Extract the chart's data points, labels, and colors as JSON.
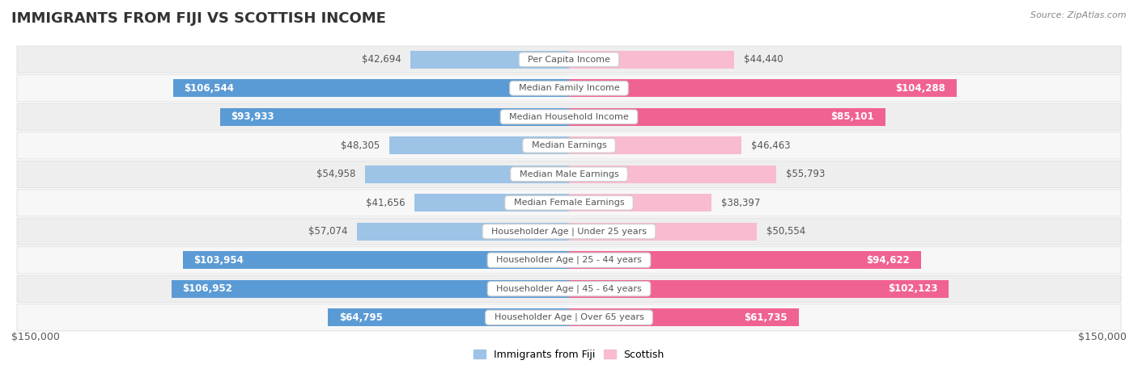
{
  "title": "IMMIGRANTS FROM FIJI VS SCOTTISH INCOME",
  "source": "Source: ZipAtlas.com",
  "categories": [
    "Per Capita Income",
    "Median Family Income",
    "Median Household Income",
    "Median Earnings",
    "Median Male Earnings",
    "Median Female Earnings",
    "Householder Age | Under 25 years",
    "Householder Age | 25 - 44 years",
    "Householder Age | 45 - 64 years",
    "Householder Age | Over 65 years"
  ],
  "fiji_values": [
    42694,
    106544,
    93933,
    48305,
    54958,
    41656,
    57074,
    103954,
    106952,
    64795
  ],
  "scottish_values": [
    44440,
    104288,
    85101,
    46463,
    55793,
    38397,
    50554,
    94622,
    102123,
    61735
  ],
  "fiji_labels": [
    "$42,694",
    "$106,544",
    "$93,933",
    "$48,305",
    "$54,958",
    "$41,656",
    "$57,074",
    "$103,954",
    "$106,952",
    "$64,795"
  ],
  "scottish_labels": [
    "$44,440",
    "$104,288",
    "$85,101",
    "$46,463",
    "$55,793",
    "$38,397",
    "$50,554",
    "$94,622",
    "$102,123",
    "$61,735"
  ],
  "fiji_color_dark": "#5b9bd5",
  "fiji_color_light": "#9dc3e6",
  "scottish_color_dark": "#f06292",
  "scottish_color_light": "#f8bbd0",
  "max_value": 150000,
  "bar_height": 0.62,
  "row_bg_color": "#f0f0f0",
  "category_text_color": "#555555",
  "legend_fiji": "Immigrants from Fiji",
  "legend_scottish": "Scottish",
  "x_axis_label_left": "$150,000",
  "x_axis_label_right": "$150,000",
  "inside_label_threshold": 60000
}
